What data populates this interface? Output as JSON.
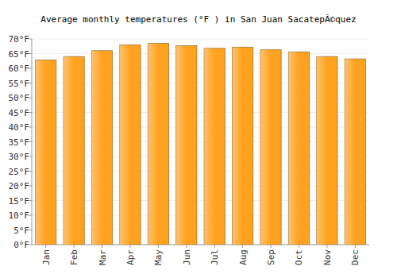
{
  "chart_data": {
    "type": "bar",
    "title": "Average monthly temperatures (°F ) in San Juan SacatepÃ©quez",
    "categories": [
      "Jan",
      "Feb",
      "Mar",
      "Apr",
      "May",
      "Jun",
      "Jul",
      "Aug",
      "Sep",
      "Oct",
      "Nov",
      "Dec"
    ],
    "values": [
      62.8,
      64,
      66,
      68,
      68.5,
      67.7,
      66.8,
      67.2,
      66.3,
      65.6,
      64,
      63.2
    ],
    "color": "#ffa21f",
    "ylim": [
      0,
      70
    ],
    "yticks": [
      {
        "value": 0,
        "label": "0°F"
      },
      {
        "value": 5,
        "label": "5°F"
      },
      {
        "value": 10,
        "label": "10°F"
      },
      {
        "value": 15,
        "label": "15°F"
      },
      {
        "value": 20,
        "label": "20°F"
      },
      {
        "value": 25,
        "label": "25°F"
      },
      {
        "value": 30,
        "label": "30°F"
      },
      {
        "value": 35,
        "label": "35°F"
      },
      {
        "value": 40,
        "label": "40°F"
      },
      {
        "value": 45,
        "label": "45°F"
      },
      {
        "value": 50,
        "label": "50°F"
      },
      {
        "value": 55,
        "label": "55°F"
      },
      {
        "value": 60,
        "label": "60°F"
      },
      {
        "value": 65,
        "label": "65°F"
      },
      {
        "value": 70,
        "label": "70°F"
      }
    ],
    "grid": true
  }
}
